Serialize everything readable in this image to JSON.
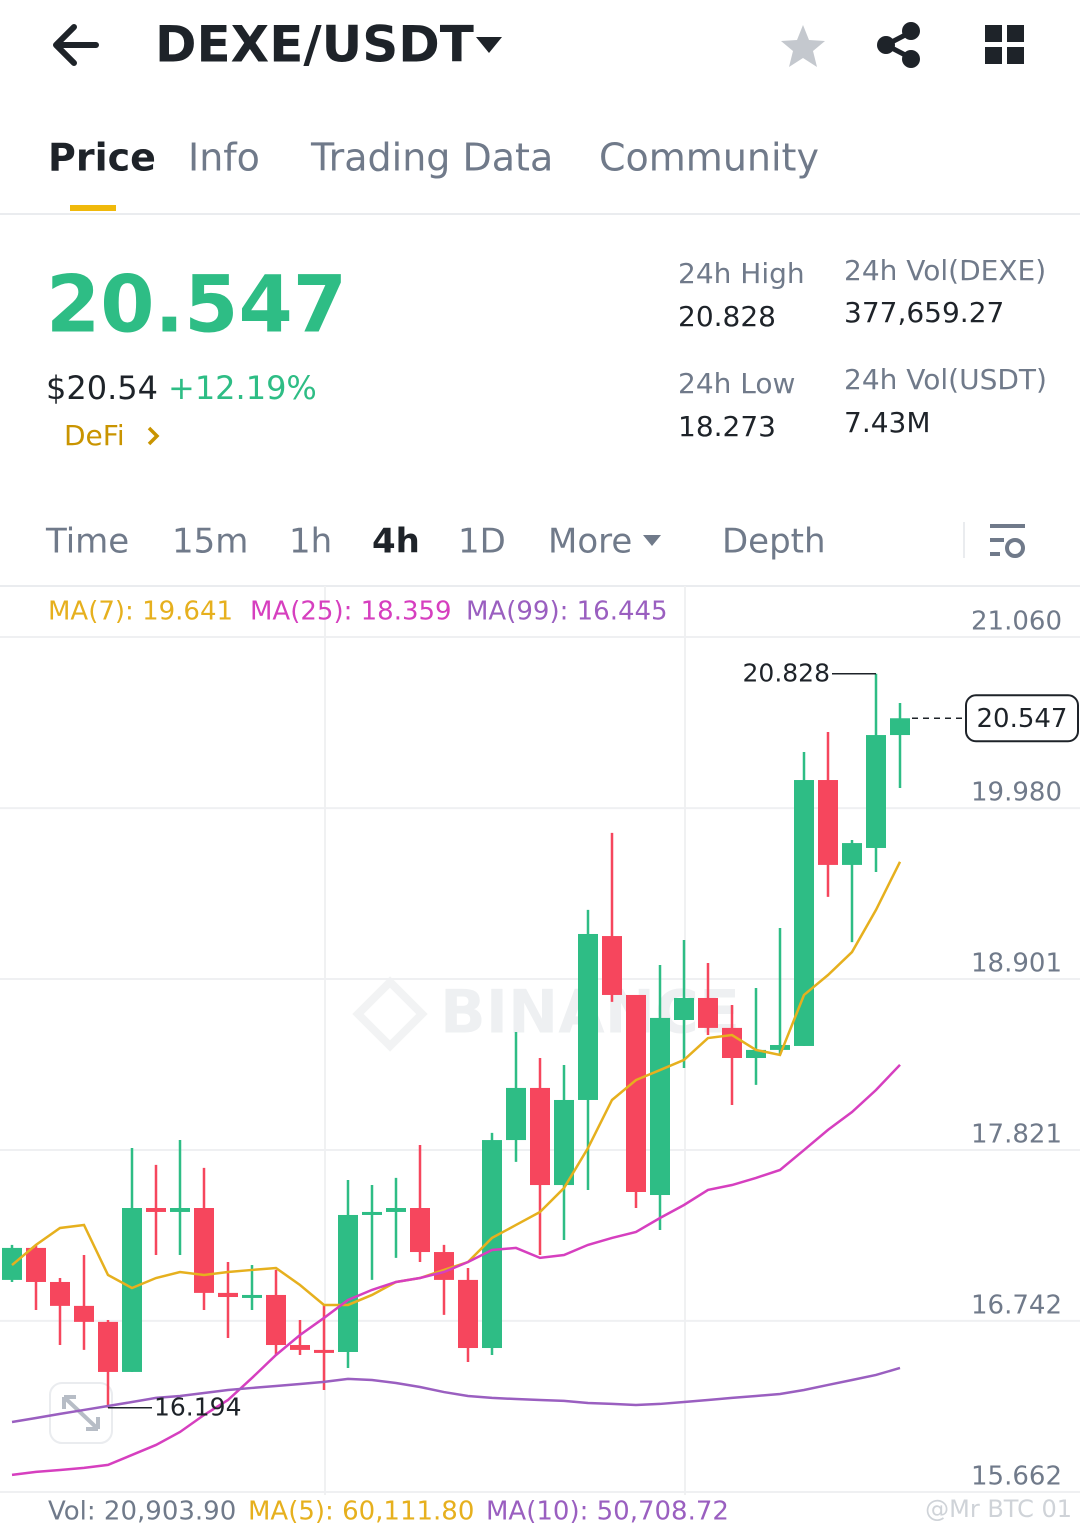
{
  "header": {
    "pair": "DEXE/USDT"
  },
  "tabs": [
    "Price",
    "Info",
    "Trading Data",
    "Community"
  ],
  "price": {
    "last": "20.547",
    "usd": "$20.54",
    "change": "+12.19%",
    "tag": "DeFi"
  },
  "stats": [
    {
      "label": "24h High",
      "value": "20.828"
    },
    {
      "label": "24h Vol(DEXE)",
      "value": "377,659.27"
    },
    {
      "label": "24h Low",
      "value": "18.273"
    },
    {
      "label": "24h Vol(USDT)",
      "value": "7.43M"
    }
  ],
  "intervals": [
    "Time",
    "15m",
    "1h",
    "4h",
    "1D",
    "More",
    "Depth"
  ],
  "chart_data": {
    "type": "candlestick",
    "up_color": "#2ebd85",
    "down_color": "#f6465d",
    "grid": true,
    "ylim": [
      15.662,
      21.06
    ],
    "yticks": [
      {
        "value": 21.06,
        "label": "21.060"
      },
      {
        "value": 19.98,
        "label": "19.980"
      },
      18.901,
      17.821,
      16.742,
      15.662
    ],
    "open": [
      17.001,
      17.203,
      16.988,
      16.837,
      16.736,
      16.42,
      17.455,
      17.43,
      17.455,
      16.919,
      16.893,
      16.906,
      16.59,
      16.559,
      16.546,
      17.411,
      17.43,
      17.455,
      17.177,
      17.001,
      16.571,
      17.884,
      18.213,
      17.6,
      18.137,
      19.172,
      18.8,
      17.537,
      18.642,
      18.781,
      18.592,
      18.402,
      18.453,
      18.478,
      20.157,
      19.621,
      19.728,
      20.441
    ],
    "high": [
      17.222,
      17.222,
      17.013,
      17.158,
      16.748,
      17.834,
      17.727,
      17.884,
      17.708,
      17.114,
      17.095,
      17.064,
      16.748,
      16.843,
      17.632,
      17.6,
      17.645,
      17.853,
      17.222,
      17.076,
      17.929,
      18.566,
      18.402,
      18.358,
      19.337,
      19.823,
      18.8,
      18.989,
      19.147,
      19.002,
      18.737,
      18.844,
      19.223,
      20.334,
      20.46,
      19.778,
      20.828,
      20.643
    ],
    "low": [
      16.988,
      16.811,
      16.59,
      16.559,
      16.194,
      16.42,
      17.158,
      17.158,
      16.811,
      16.634,
      16.811,
      16.527,
      16.527,
      16.306,
      16.445,
      17.001,
      17.14,
      17.114,
      16.78,
      16.483,
      16.527,
      17.746,
      17.158,
      17.253,
      17.569,
      18.756,
      17.455,
      17.316,
      18.339,
      18.547,
      18.105,
      18.232,
      18.421,
      18.478,
      19.419,
      19.134,
      19.576,
      20.107
    ],
    "close": [
      17.203,
      16.988,
      16.837,
      16.736,
      16.42,
      17.455,
      17.43,
      17.455,
      16.919,
      16.893,
      16.906,
      16.59,
      16.559,
      16.54,
      17.411,
      17.43,
      17.455,
      17.177,
      17.001,
      16.571,
      17.884,
      18.213,
      17.6,
      18.137,
      19.185,
      18.8,
      17.556,
      18.655,
      18.781,
      18.592,
      18.402,
      18.453,
      18.484,
      20.157,
      19.621,
      19.759,
      20.441,
      20.547
    ],
    "series": [
      {
        "name": "MA(7): 19.641",
        "color": "#e6b01e",
        "values": [
          17.095,
          17.222,
          17.329,
          17.348,
          17.032,
          16.95,
          17.013,
          17.051,
          17.032,
          17.051,
          17.064,
          17.076,
          16.969,
          16.843,
          16.843,
          16.906,
          16.988,
          17.013,
          17.064,
          17.114,
          17.266,
          17.348,
          17.43,
          17.581,
          17.834,
          18.137,
          18.263,
          18.326,
          18.39,
          18.528,
          18.547,
          18.453,
          18.421,
          18.8,
          18.926,
          19.071,
          19.337,
          19.641
        ]
      },
      {
        "name": "MA(25): 18.359",
        "color": "#d63fbf",
        "values": [
          15.77,
          15.789,
          15.801,
          15.814,
          15.833,
          15.896,
          15.959,
          16.041,
          16.148,
          16.243,
          16.382,
          16.527,
          16.653,
          16.761,
          16.874,
          16.938,
          16.988,
          17.013,
          17.051,
          17.114,
          17.19,
          17.203,
          17.14,
          17.158,
          17.222,
          17.266,
          17.304,
          17.392,
          17.474,
          17.569,
          17.6,
          17.645,
          17.695,
          17.821,
          17.948,
          18.061,
          18.2,
          18.359
        ]
      },
      {
        "name": "MA(99): 16.445",
        "color": "#9a5fc0",
        "values": [
          16.104,
          16.129,
          16.155,
          16.18,
          16.205,
          16.23,
          16.256,
          16.268,
          16.287,
          16.306,
          16.319,
          16.331,
          16.344,
          16.357,
          16.376,
          16.369,
          16.35,
          16.325,
          16.293,
          16.268,
          16.256,
          16.249,
          16.243,
          16.237,
          16.224,
          16.218,
          16.211,
          16.218,
          16.23,
          16.243,
          16.256,
          16.268,
          16.281,
          16.306,
          16.338,
          16.369,
          16.401,
          16.445
        ]
      }
    ],
    "volume_legend": [
      "Vol: 20,903.90",
      "MA(5): 60,111.80",
      "MA(10): 50,708.72"
    ]
  },
  "watermark": "BINANCE",
  "credit": "@Mr BTC 01"
}
